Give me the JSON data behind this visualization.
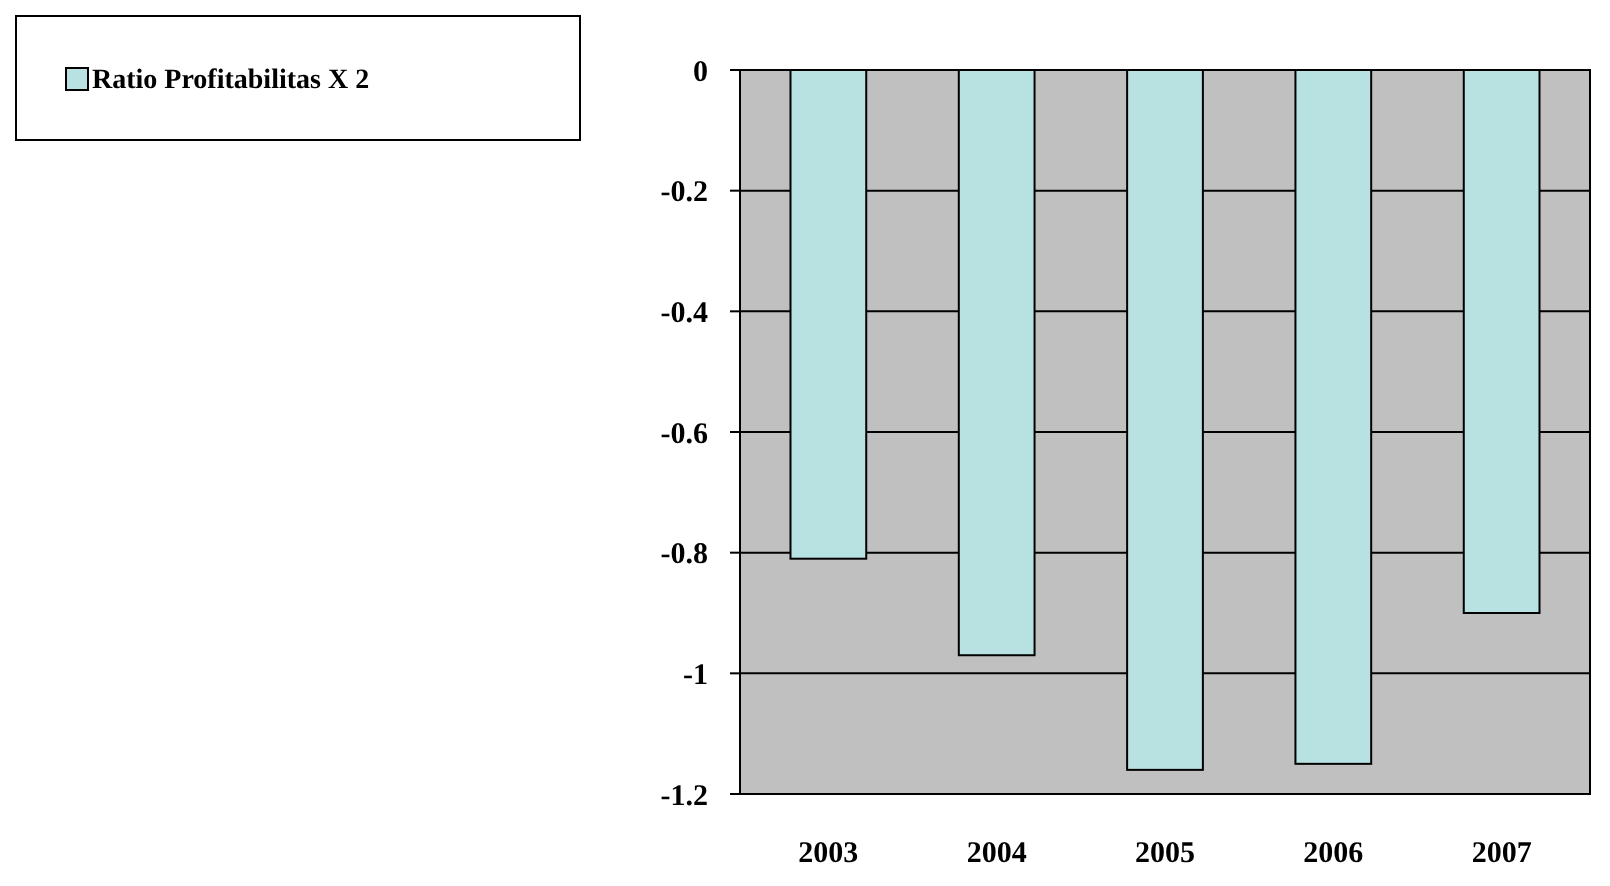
{
  "chart_data": {
    "type": "bar",
    "categories": [
      "2003",
      "2004",
      "2005",
      "2006",
      "2007"
    ],
    "series": [
      {
        "name": "Ratio Profitabilitas X 2",
        "color": "#b8e2e2",
        "values": [
          -0.81,
          -0.97,
          -1.16,
          -1.15,
          -0.9
        ]
      }
    ],
    "ylim": [
      -1.2,
      0
    ],
    "yticks": [
      0,
      -0.2,
      -0.4,
      -0.6,
      -0.8,
      -1,
      -1.2
    ],
    "grid": "y",
    "legend": "top left"
  }
}
